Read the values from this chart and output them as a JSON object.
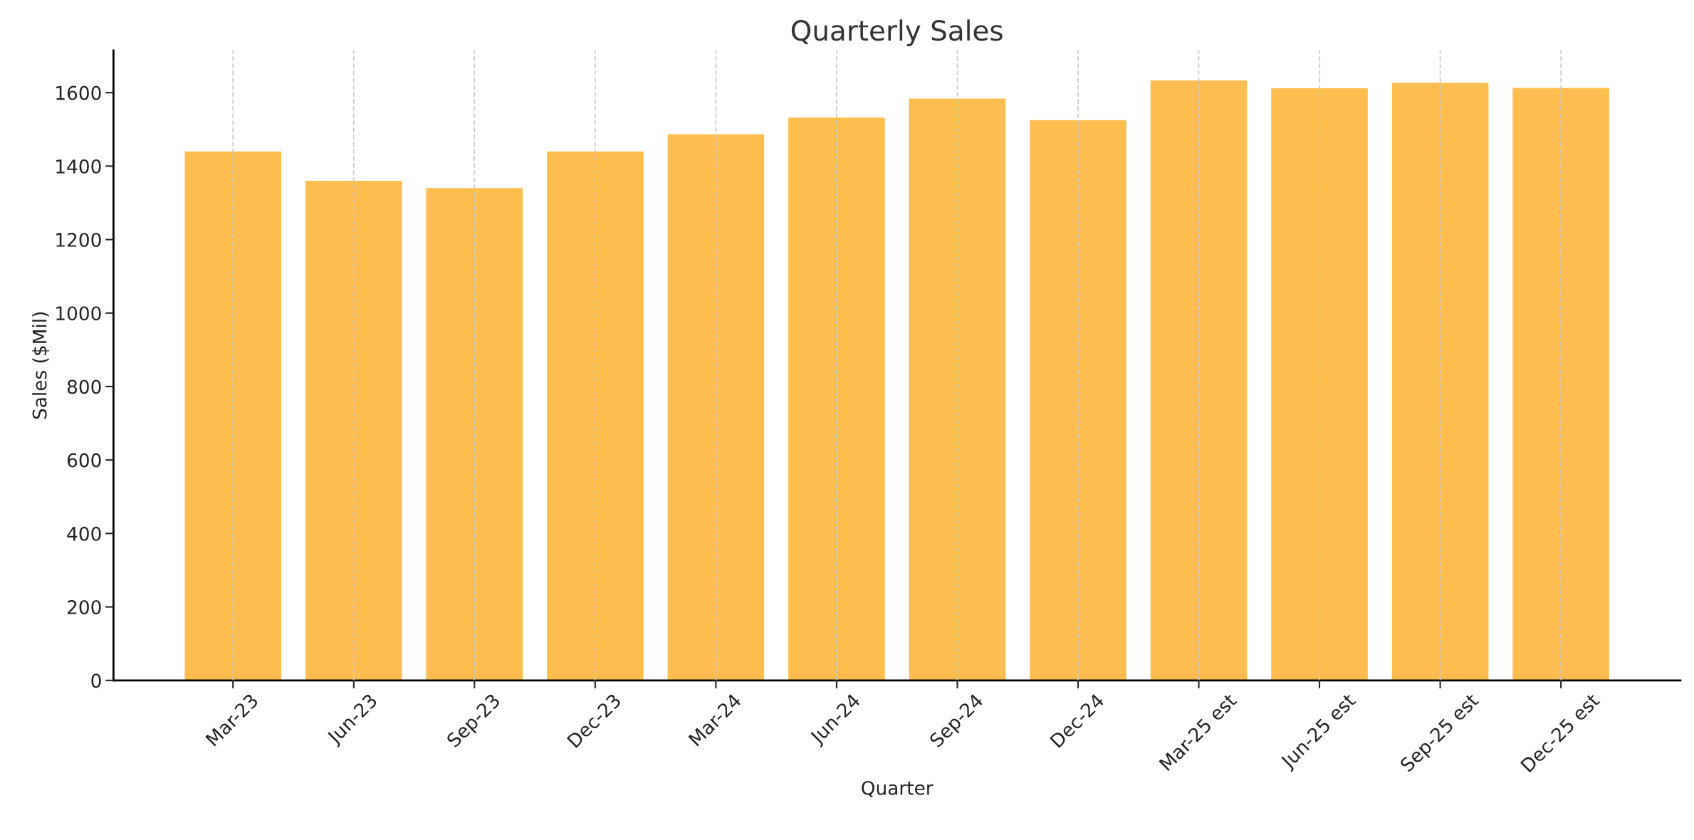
{
  "chart_data": {
    "type": "bar",
    "title": "Quarterly Sales",
    "xlabel": "Quarter",
    "ylabel": "Sales ($Mil)",
    "categories": [
      "Mar-23",
      "Jun-23",
      "Sep-23",
      "Dec-23",
      "Mar-24",
      "Jun-24",
      "Sep-24",
      "Dec-24",
      "Mar-25 est",
      "Jun-25 est",
      "Sep-25 est",
      "Dec-25 est"
    ],
    "values": [
      1440,
      1360,
      1340,
      1440,
      1487,
      1532,
      1584,
      1525,
      1633,
      1612,
      1627,
      1613
    ],
    "color": "#fdbe4f",
    "ylim": [
      0,
      1715
    ],
    "yticks": [
      0,
      200,
      400,
      600,
      800,
      1000,
      1200,
      1400,
      1600
    ],
    "grid": "x",
    "line_style": "dashed"
  }
}
